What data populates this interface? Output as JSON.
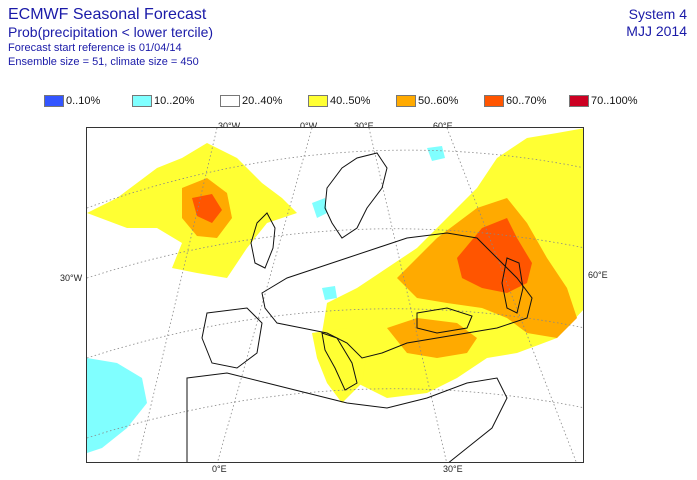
{
  "header": {
    "title": "ECMWF Seasonal Forecast",
    "subtitle": "Prob(precipitation < lower tercile)",
    "start_reference": "Forecast start reference is 01/04/14",
    "ensemble_info": "Ensemble size = 51, climate size = 450",
    "system": "System 4",
    "season": "MJJ 2014"
  },
  "legend": [
    {
      "label": "0..10%",
      "color": "#3355ff"
    },
    {
      "label": "10..20%",
      "color": "#80ffff"
    },
    {
      "label": "20..40%",
      "color": "#ffffff"
    },
    {
      "label": "40..50%",
      "color": "#ffff33"
    },
    {
      "label": "50..60%",
      "color": "#ffaa00"
    },
    {
      "label": "60..70%",
      "color": "#ff5500"
    },
    {
      "label": "70..100%",
      "color": "#cc0022"
    }
  ],
  "coordinates": {
    "top": [
      "30°W",
      "0°W",
      "30°E",
      "60°E"
    ],
    "left": "30°W",
    "right": "60°E",
    "bottom": [
      "0°E",
      "30°E"
    ]
  }
}
